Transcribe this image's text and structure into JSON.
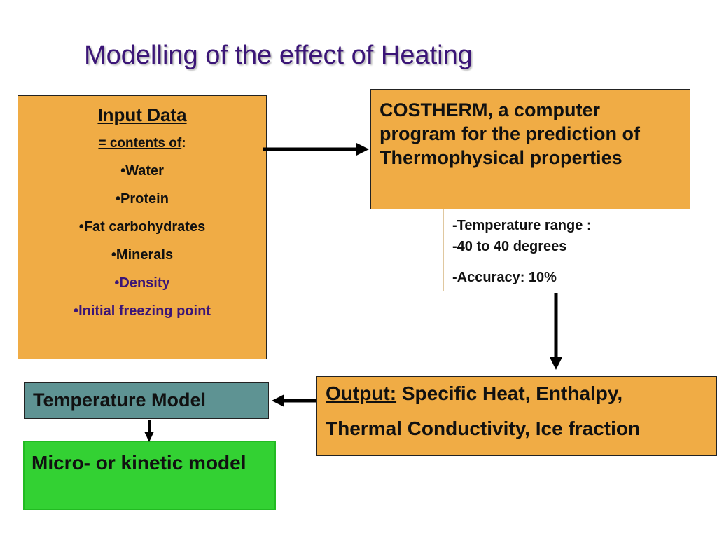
{
  "title": "Modelling of the effect of Heating",
  "input_data": {
    "heading": "Input Data",
    "subheading_prefix": "= contents of",
    "subheading_suffix": ":",
    "items": [
      {
        "bullet": "•",
        "text": "Water"
      },
      {
        "bullet": "•",
        "text": "Protein"
      },
      {
        "bullet": "•",
        "text": "Fat carbohydrates"
      },
      {
        "bullet": "•",
        "text": "Minerals"
      },
      {
        "bullet": "•",
        "text": "Density"
      },
      {
        "bullet": "•",
        "text": "Initial freezing point"
      }
    ]
  },
  "costherm": {
    "text": "COSTHERM, a computer program for the prediction of Thermophysical properties"
  },
  "range_info": {
    "line1": "-Temperature range :",
    "line2": "-40 to 40 degrees",
    "line3": "-Accuracy: 10%"
  },
  "output": {
    "label": "Output:",
    "line1": "Specific Heat, Enthalpy,",
    "line2": "Thermal Conductivity, Ice fraction"
  },
  "temperature_model": {
    "label": "Temperature Model"
  },
  "micro_model": {
    "label": "Micro- or kinetic model"
  },
  "colors": {
    "title": "#3b1577",
    "orange_box": "#f0ac45",
    "teal_box": "#5e9393",
    "green_box": "#33d133",
    "purple_text": "#3b1577"
  }
}
